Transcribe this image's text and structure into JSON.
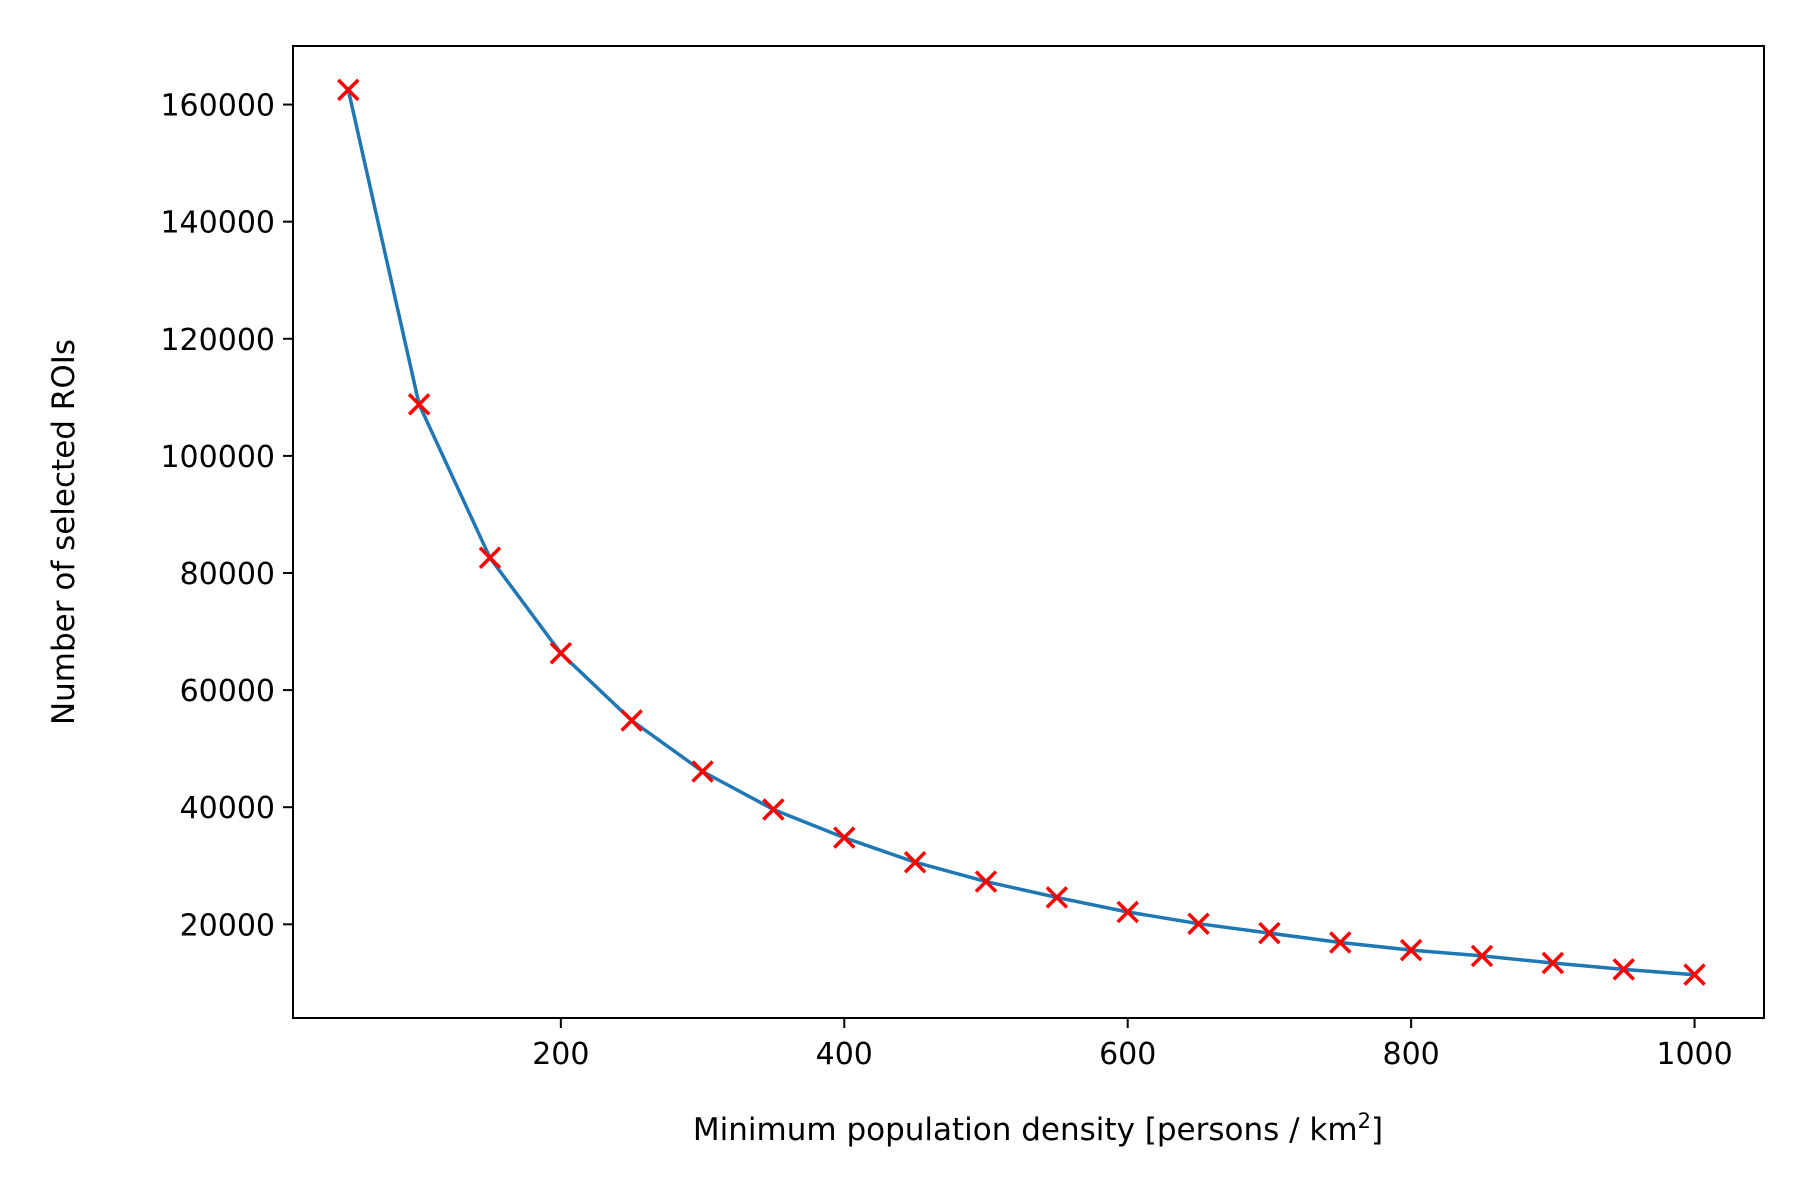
{
  "chart_data": {
    "type": "line",
    "title": "",
    "xlabel": {
      "main": "Minimum population density [persons / km",
      "sup": "2",
      "close": "]"
    },
    "ylabel": "Number of selected ROIs",
    "xlim": [
      11,
      1049
    ],
    "ylim": [
      4000,
      170000
    ],
    "xticks": [
      200,
      400,
      600,
      800,
      1000
    ],
    "xtick_labels": [
      "200",
      "400",
      "600",
      "800",
      "1000"
    ],
    "yticks": [
      20000,
      40000,
      60000,
      80000,
      100000,
      120000,
      140000,
      160000
    ],
    "ytick_labels": [
      "20000",
      "40000",
      "60000",
      "80000",
      "100000",
      "120000",
      "140000",
      "160000"
    ],
    "grid": false,
    "legend": "none",
    "series": [
      {
        "line_color": "#1f77b4",
        "marker": "x",
        "marker_color": "#ff0000",
        "x": [
          50,
          100,
          150,
          200,
          250,
          300,
          350,
          400,
          450,
          500,
          550,
          600,
          650,
          700,
          750,
          800,
          850,
          900,
          950,
          1000
        ],
        "y": [
          162500,
          108800,
          82600,
          66300,
          54800,
          46100,
          39600,
          34800,
          30600,
          27300,
          24600,
          22100,
          20100,
          18500,
          16900,
          15600,
          14600,
          13400,
          12300,
          11400
        ]
      }
    ]
  }
}
